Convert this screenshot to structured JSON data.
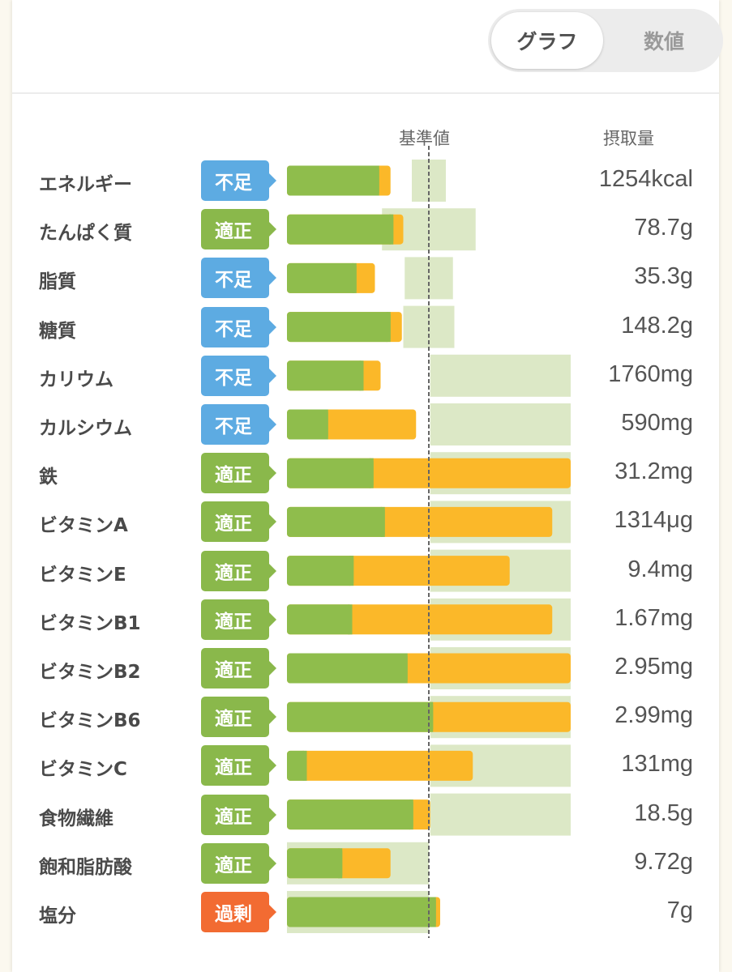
{
  "toggle": {
    "graph_label": "グラフ",
    "numeric_label": "数値",
    "selected": "graph"
  },
  "colors": {
    "bar_base": "#8fbd4c",
    "bar_extra": "#fbb829",
    "range": "#dce8c6",
    "reference_line": "#666666",
    "status": {
      "不足": "#5dabe2",
      "適正": "#8ab84b",
      "過剰": "#f26b32"
    }
  },
  "chart_data": {
    "type": "bar",
    "orientation": "horizontal",
    "stacked": true,
    "title": "",
    "reference_label": "基準値",
    "intake_header": "摂取量",
    "xlabel": "",
    "ylabel": "",
    "value_unit": "percent of reference value",
    "xlim": [
      0,
      200
    ],
    "reference_value": 100,
    "categories": [
      "エネルギー",
      "たんぱく質",
      "脂質",
      "糖質",
      "カリウム",
      "カルシウム",
      "鉄",
      "ビタミンA",
      "ビタミンE",
      "ビタミンB1",
      "ビタミンB2",
      "ビタミンB6",
      "ビタミンC",
      "食物繊維",
      "飽和脂肪酸",
      "塩分"
    ],
    "series": [
      {
        "name": "base",
        "color": "#8fbd4c",
        "values": [
          65,
          75,
          49,
          73,
          54,
          29,
          61,
          69,
          47,
          46,
          85,
          103,
          14,
          89,
          39,
          105
        ]
      },
      {
        "name": "extra",
        "color": "#fbb829",
        "values": [
          8,
          7,
          13,
          8,
          12,
          62,
          139,
          118,
          110,
          141,
          115,
          97,
          117,
          12,
          34,
          3
        ]
      }
    ],
    "target_ranges": [
      [
        88,
        112
      ],
      [
        67,
        133
      ],
      [
        83,
        117
      ],
      [
        82,
        118
      ],
      [
        101,
        200
      ],
      [
        101,
        200
      ],
      [
        101,
        200
      ],
      [
        101,
        200
      ],
      [
        101,
        200
      ],
      [
        101,
        200
      ],
      [
        101,
        200
      ],
      [
        101,
        200
      ],
      [
        101,
        200
      ],
      [
        101,
        200
      ],
      [
        0,
        100
      ],
      [
        0,
        100
      ]
    ],
    "statuses": [
      "不足",
      "適正",
      "不足",
      "不足",
      "不足",
      "不足",
      "適正",
      "適正",
      "適正",
      "適正",
      "適正",
      "適正",
      "適正",
      "適正",
      "適正",
      "過剰"
    ],
    "intakes": [
      "1254kcal",
      "78.7g",
      "35.3g",
      "148.2g",
      "1760mg",
      "590mg",
      "31.2mg",
      "1314μg",
      "9.4mg",
      "1.67mg",
      "2.95mg",
      "2.99mg",
      "131mg",
      "18.5g",
      "9.72g",
      "7g"
    ]
  }
}
